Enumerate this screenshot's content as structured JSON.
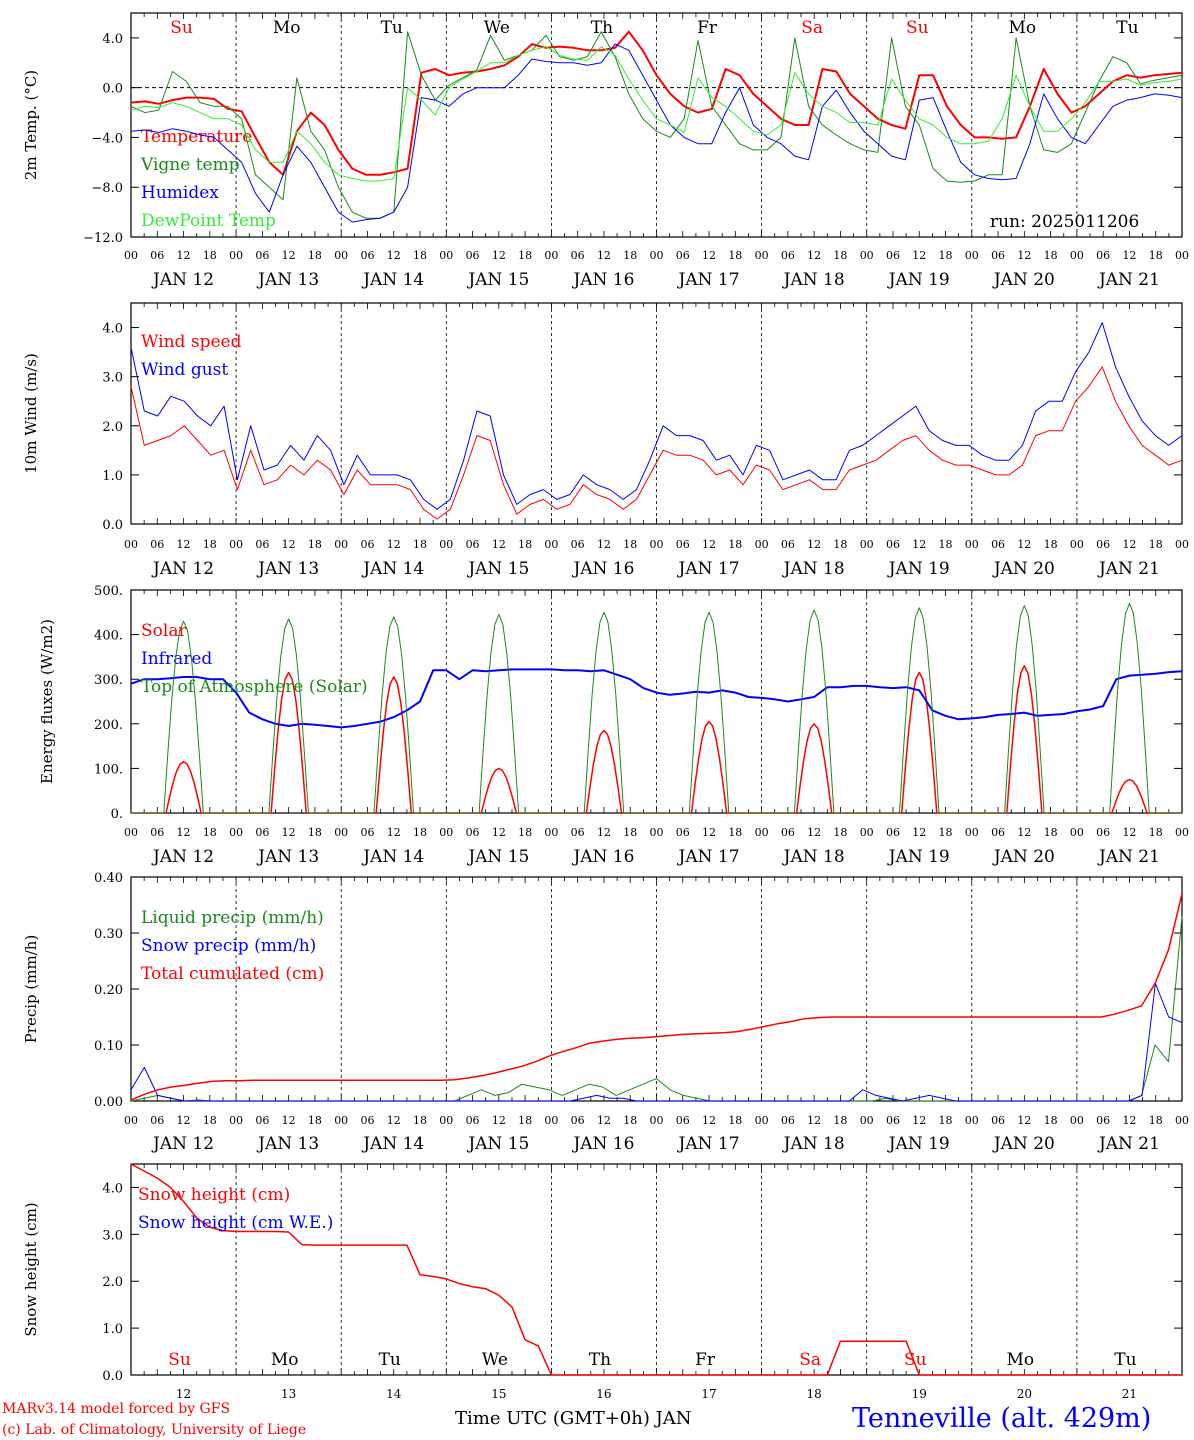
{
  "colors": {
    "red": "#ff0000",
    "darkgreen": "#1a8a1a",
    "blue": "#0000ff",
    "lime": "#33ee33",
    "black": "#000000"
  },
  "meta": {
    "run": "run: 2025011206",
    "station": "Tenneville (alt. 429m)",
    "credit1": "MARv3.14 model forced by GFS",
    "credit2": "(c) Lab. of Climatology, University of Liege",
    "x_title": "Time UTC (GMT+0h) JAN"
  },
  "days": [
    "Su",
    "Mo",
    "Tu",
    "We",
    "Th",
    "Fr",
    "Sa",
    "Su",
    "Mo",
    "Tu"
  ],
  "day_colors": [
    "#ff0000",
    "#000000",
    "#000000",
    "#000000",
    "#000000",
    "#000000",
    "#ff0000",
    "#ff0000",
    "#000000",
    "#000000"
  ],
  "dates": [
    "JAN 12",
    "JAN 13",
    "JAN 14",
    "JAN 15",
    "JAN 16",
    "JAN 17",
    "JAN 18",
    "JAN 19",
    "JAN 20",
    "JAN 21"
  ],
  "date_nums": [
    "12",
    "13",
    "14",
    "15",
    "16",
    "17",
    "18",
    "19",
    "20",
    "21"
  ],
  "hours": [
    "00",
    "06",
    "12",
    "18"
  ],
  "chart_data": [
    {
      "type": "line",
      "ylabel": "2m Temp. (°C)",
      "ylim": [
        -12,
        6
      ],
      "yticks": [
        "4.0",
        "0.0",
        "−4.0",
        "−8.0",
        "−12.0"
      ],
      "ytick_values": [
        4,
        0,
        -4,
        -8,
        -12
      ],
      "zero_line": true,
      "x": "hours since JAN 12 00 UTC, every 3 h",
      "series": [
        {
          "name": "Temperature",
          "color": "#ff0000",
          "width": 2,
          "values": [
            -1.2,
            -1.1,
            -1.3,
            -1.0,
            -0.8,
            -0.8,
            -0.9,
            -1.7,
            -1.9,
            -4,
            -6,
            -7,
            -3.5,
            -2,
            -3,
            -5,
            -6.5,
            -7,
            -7,
            -6.8,
            -6.5,
            1.2,
            1.5,
            1,
            1.2,
            1.3,
            1.5,
            1.8,
            2.5,
            3.5,
            3.2,
            3.3,
            3.2,
            3,
            3,
            3.2,
            4.5,
            3,
            1,
            -0.5,
            -1.5,
            -2,
            -1.7,
            1.5,
            1,
            -0.5,
            -1.5,
            -2.5,
            -3,
            -3,
            1.5,
            1.3,
            -0.5,
            -1.5,
            -2.5,
            -3,
            -3.3,
            1,
            1,
            -1.5,
            -3,
            -4,
            -4,
            -4.1,
            -4,
            -1.5,
            1.5,
            -0.5,
            -2,
            -1.5,
            -0.5,
            0.5,
            1,
            0.8,
            1,
            1.1,
            1.2
          ]
        },
        {
          "name": "Vigne temp",
          "color": "#1a8a1a",
          "width": 1,
          "values": [
            -1.5,
            -2,
            -1.8,
            1.3,
            0.5,
            -1.2,
            -1.5,
            -1.5,
            -2.5,
            -7,
            -8,
            -9,
            0.8,
            -3.5,
            -5,
            -8,
            -10,
            -10.5,
            -10.5,
            -10,
            4.5,
            1,
            -1,
            0.2,
            0.8,
            1.4,
            4.2,
            2.2,
            2.6,
            3,
            4.2,
            2.5,
            2.2,
            2.5,
            4.5,
            2.5,
            -0.5,
            -2.5,
            -3.5,
            -4,
            -2.5,
            3.8,
            -1.5,
            -3,
            -4.5,
            -5,
            -5,
            -4,
            4,
            -1.5,
            -3,
            -3.8,
            -4.5,
            -5,
            -5.2,
            4,
            -1.5,
            -3,
            -6.5,
            -7.5,
            -7.6,
            -7.5,
            -7,
            -7,
            4,
            -1.5,
            -5,
            -5.2,
            -4.5,
            -2,
            0.5,
            2.5,
            2,
            0.3,
            0.6,
            0.8,
            1
          ]
        },
        {
          "name": "Humidex",
          "color": "#0000ff",
          "width": 1,
          "values": [
            -3.5,
            -3.4,
            -3.6,
            -3.3,
            -3.5,
            -3.8,
            -4,
            -5,
            -6,
            -8.5,
            -10,
            -7,
            -4.7,
            -6,
            -8,
            -10,
            -10.8,
            -10.6,
            -10.5,
            -10,
            -8,
            -0.8,
            -1,
            -1.5,
            -0.5,
            0,
            0,
            0,
            1,
            2.3,
            2.1,
            2,
            2,
            1.8,
            2,
            3.5,
            3,
            1,
            -1,
            -3,
            -4,
            -4.5,
            -4.5,
            -2,
            0,
            -3,
            -4,
            -4.5,
            -5.5,
            -5.8,
            -1.5,
            -0.2,
            -2,
            -3.5,
            -4.5,
            -5.5,
            -5.8,
            -1,
            -0.8,
            -3.5,
            -6,
            -7,
            -7.3,
            -7.4,
            -7.3,
            -4.5,
            -0.5,
            -2.5,
            -4,
            -4.5,
            -3,
            -1.5,
            -1,
            -0.8,
            -0.5,
            -0.6,
            -0.8
          ]
        },
        {
          "name": "DewPoint Temp",
          "color": "#33ee33",
          "width": 1,
          "values": [
            -1.8,
            -1.5,
            -1.6,
            -1.2,
            -1.5,
            -2,
            -2.5,
            -2.5,
            -3,
            -5,
            -6,
            -6,
            -3.5,
            -4.5,
            -6,
            -7,
            -7.3,
            -7.5,
            -7.5,
            -7.3,
            0,
            -1,
            -2.2,
            0,
            0.7,
            1.3,
            2,
            2,
            2.6,
            3,
            3.3,
            2.6,
            2.3,
            2.2,
            3.3,
            2.6,
            0.7,
            -1,
            -2.5,
            -3,
            -3.6,
            0.8,
            -0.8,
            -1.5,
            -2.5,
            -3.5,
            -3.8,
            -3,
            1.2,
            -0.5,
            -1.5,
            -2,
            -2.8,
            -2.8,
            -3,
            0.7,
            -1,
            -2.5,
            -3,
            -4,
            -4.5,
            -4.5,
            -4.3,
            -2.5,
            1,
            -1.5,
            -3.5,
            -3.5,
            -2.5,
            -1.2,
            0.5,
            0.5,
            0.7,
            0.2,
            0.4,
            0.5,
            0.7
          ]
        }
      ]
    },
    {
      "type": "line",
      "ylabel": "10m Wind (m/s)",
      "ylim": [
        0,
        4.5
      ],
      "yticks": [
        "4.0",
        "3.0",
        "2.0",
        "1.0",
        "0.0"
      ],
      "ytick_values": [
        4,
        3,
        2,
        1,
        0
      ],
      "series": [
        {
          "name": "Wind speed",
          "color": "#ff0000",
          "width": 1,
          "values": [
            2.8,
            1.6,
            1.7,
            1.8,
            2.0,
            1.7,
            1.4,
            1.5,
            0.7,
            1.5,
            0.8,
            0.9,
            1.2,
            1.0,
            1.3,
            1.1,
            0.6,
            1.1,
            0.8,
            0.8,
            0.8,
            0.7,
            0.3,
            0.1,
            0.3,
            1.0,
            1.8,
            1.7,
            0.8,
            0.2,
            0.4,
            0.5,
            0.3,
            0.4,
            0.8,
            0.6,
            0.5,
            0.3,
            0.5,
            1.0,
            1.5,
            1.4,
            1.4,
            1.3,
            1.0,
            1.1,
            0.8,
            1.2,
            1.1,
            0.7,
            0.8,
            0.9,
            0.7,
            0.7,
            1.1,
            1.2,
            1.3,
            1.5,
            1.7,
            1.8,
            1.5,
            1.3,
            1.2,
            1.2,
            1.1,
            1.0,
            1.0,
            1.2,
            1.8,
            1.9,
            1.9,
            2.5,
            2.8,
            3.2,
            2.5,
            2.0,
            1.6,
            1.4,
            1.2,
            1.3
          ]
        },
        {
          "name": "Wind gust",
          "color": "#0000ff",
          "width": 1,
          "values": [
            3.6,
            2.3,
            2.2,
            2.6,
            2.5,
            2.2,
            2.0,
            2.4,
            0.9,
            2.0,
            1.1,
            1.2,
            1.6,
            1.3,
            1.8,
            1.5,
            0.8,
            1.4,
            1.0,
            1.0,
            1.0,
            0.9,
            0.5,
            0.3,
            0.5,
            1.3,
            2.3,
            2.2,
            1.0,
            0.4,
            0.6,
            0.7,
            0.5,
            0.6,
            1.0,
            0.8,
            0.7,
            0.5,
            0.7,
            1.3,
            2.0,
            1.8,
            1.8,
            1.7,
            1.3,
            1.4,
            1.0,
            1.6,
            1.5,
            0.9,
            1.0,
            1.1,
            0.9,
            0.9,
            1.5,
            1.6,
            1.8,
            2.0,
            2.2,
            2.4,
            1.9,
            1.7,
            1.6,
            1.6,
            1.4,
            1.3,
            1.3,
            1.6,
            2.3,
            2.5,
            2.5,
            3.1,
            3.5,
            4.1,
            3.2,
            2.6,
            2.1,
            1.8,
            1.6,
            1.8
          ]
        }
      ]
    },
    {
      "type": "line",
      "ylabel": "Energy fluxes (W/m2)",
      "ylim": [
        0,
        500
      ],
      "yticks": [
        "500.",
        "400.",
        "300.",
        "200.",
        "100.",
        "0."
      ],
      "ytick_values": [
        500,
        400,
        300,
        200,
        100,
        0
      ],
      "series": [
        {
          "name": "Solar",
          "color": "#ff0000",
          "width": 1.5,
          "peaks": [
            115,
            315,
            305,
            100,
            185,
            205,
            200,
            315,
            330,
            75
          ]
        },
        {
          "name": "Infrared",
          "color": "#0000ff",
          "width": 2,
          "values": [
            290,
            300,
            300,
            302,
            305,
            305,
            300,
            300,
            270,
            225,
            210,
            200,
            195,
            200,
            198,
            195,
            192,
            195,
            200,
            205,
            215,
            230,
            250,
            320,
            320,
            300,
            320,
            318,
            320,
            322,
            322,
            322,
            322,
            320,
            320,
            318,
            320,
            310,
            300,
            280,
            270,
            265,
            268,
            272,
            270,
            275,
            270,
            260,
            258,
            255,
            250,
            255,
            260,
            282,
            282,
            285,
            285,
            282,
            280,
            282,
            275,
            230,
            218,
            210,
            212,
            215,
            220,
            222,
            225,
            218,
            220,
            222,
            228,
            232,
            240,
            300,
            308,
            310,
            312,
            316,
            318
          ]
        },
        {
          "name": "Top of Atmosphere (Solar)",
          "color": "#1a8a1a",
          "width": 1,
          "peaks": [
            430,
            435,
            440,
            445,
            450,
            450,
            455,
            460,
            465,
            470
          ]
        }
      ]
    },
    {
      "type": "line",
      "ylabel": "Precip (mm/h)",
      "ylim": [
        0,
        0.4
      ],
      "yticks": [
        "0.40",
        "0.30",
        "0.20",
        "0.10",
        "0.00"
      ],
      "ytick_values": [
        0.4,
        0.3,
        0.2,
        0.1,
        0
      ],
      "series": [
        {
          "name": "Liquid precip (mm/h)",
          "color": "#1a8a1a",
          "width": 1,
          "values": [
            0,
            0.005,
            0.01,
            0.005,
            0,
            0.002,
            0,
            0,
            0,
            0,
            0,
            0,
            0,
            0,
            0,
            0,
            0,
            0,
            0,
            0,
            0,
            0,
            0,
            0,
            0,
            0.01,
            0.02,
            0.01,
            0.015,
            0.03,
            0.025,
            0.02,
            0.01,
            0.02,
            0.03,
            0.025,
            0.01,
            0.02,
            0.03,
            0.04,
            0.02,
            0.01,
            0.005,
            0,
            0,
            0,
            0,
            0,
            0,
            0,
            0,
            0,
            0,
            0,
            0,
            0,
            0.005,
            0,
            0,
            0,
            0,
            0,
            0,
            0,
            0,
            0,
            0,
            0,
            0,
            0,
            0,
            0,
            0,
            0,
            0,
            0.01,
            0.1,
            0.07,
            0.33
          ]
        },
        {
          "name": "Snow precip (mm/h)",
          "color": "#0000ff",
          "width": 1,
          "values": [
            0.02,
            0.06,
            0.01,
            0.005,
            0,
            0,
            0,
            0,
            0,
            0,
            0,
            0,
            0,
            0,
            0,
            0,
            0,
            0,
            0,
            0,
            0,
            0,
            0,
            0,
            0,
            0,
            0,
            0,
            0,
            0,
            0,
            0,
            0,
            0,
            0.005,
            0.01,
            0.005,
            0.005,
            0,
            0,
            0,
            0,
            0,
            0,
            0,
            0,
            0,
            0,
            0,
            0,
            0,
            0,
            0,
            0,
            0,
            0.02,
            0.01,
            0.005,
            0,
            0.005,
            0.01,
            0.005,
            0,
            0,
            0,
            0,
            0,
            0,
            0,
            0,
            0,
            0,
            0,
            0,
            0,
            0,
            0.01,
            0.21,
            0.15,
            0.14
          ]
        },
        {
          "name": "Total cumulated (cm)",
          "color": "#ff0000",
          "width": 1.5,
          "values": [
            0.002,
            0.012,
            0.02,
            0.025,
            0.028,
            0.032,
            0.035,
            0.036,
            0.036,
            0.037,
            0.037,
            0.037,
            0.037,
            0.037,
            0.037,
            0.037,
            0.037,
            0.037,
            0.037,
            0.037,
            0.037,
            0.037,
            0.037,
            0.037,
            0.038,
            0.041,
            0.045,
            0.05,
            0.056,
            0.062,
            0.07,
            0.08,
            0.088,
            0.095,
            0.103,
            0.107,
            0.11,
            0.112,
            0.113,
            0.115,
            0.117,
            0.119,
            0.12,
            0.121,
            0.122,
            0.124,
            0.128,
            0.133,
            0.138,
            0.142,
            0.147,
            0.149,
            0.15,
            0.15,
            0.15,
            0.15,
            0.15,
            0.15,
            0.15,
            0.15,
            0.15,
            0.15,
            0.15,
            0.15,
            0.15,
            0.15,
            0.15,
            0.15,
            0.15,
            0.15,
            0.15,
            0.15,
            0.15,
            0.155,
            0.162,
            0.17,
            0.21,
            0.27,
            0.37
          ]
        }
      ]
    },
    {
      "type": "line",
      "ylabel": "Snow height (cm)",
      "ylim": [
        0,
        4.5
      ],
      "yticks": [
        "4.0",
        "3.0",
        "2.0",
        "1.0",
        "0.0"
      ],
      "ytick_values": [
        4,
        3,
        2,
        1,
        0
      ],
      "series": [
        {
          "name": "Snow height (cm)",
          "color": "#ff0000",
          "width": 1.5,
          "values": [
            4.5,
            4.35,
            4.2,
            4.0,
            3.7,
            3.35,
            3.15,
            3.08,
            3.06,
            3.06,
            3.06,
            3.06,
            3.05,
            2.78,
            2.77,
            2.77,
            2.77,
            2.77,
            2.77,
            2.77,
            2.77,
            2.77,
            2.14,
            2.1,
            2.05,
            1.95,
            1.88,
            1.84,
            1.7,
            1.45,
            0.75,
            0.62,
            0,
            0,
            0,
            0,
            0,
            0,
            0,
            0,
            0,
            0,
            0,
            0,
            0,
            0,
            0,
            0,
            0,
            0,
            0,
            0,
            0,
            0,
            0.72,
            0.72,
            0.72,
            0.72,
            0.72,
            0.72,
            0,
            0,
            0,
            0,
            0,
            0,
            0,
            0,
            0,
            0,
            0,
            0,
            0,
            0,
            0,
            0,
            0,
            0,
            0,
            0,
            0
          ]
        },
        {
          "name": "Snow height (cm W.E.)",
          "color": "#0000ff",
          "width": 1,
          "values": []
        }
      ]
    }
  ]
}
